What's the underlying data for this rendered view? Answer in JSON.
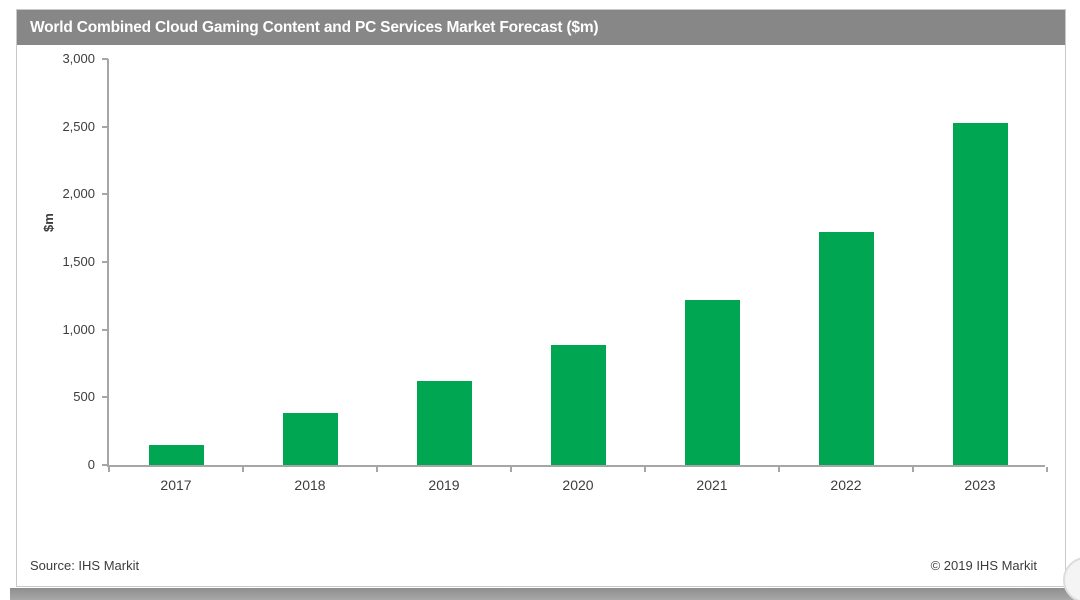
{
  "header": {
    "title": "World Combined Cloud Gaming Content and PC Services Market Forecast ($m)"
  },
  "footer": {
    "source": "Source: IHS Markit",
    "copyright": "© 2019 IHS Markit"
  },
  "chart_data": {
    "type": "bar",
    "title": "World Combined Cloud Gaming Content and PC Services Market Forecast ($m)",
    "categories": [
      "2017",
      "2018",
      "2019",
      "2020",
      "2021",
      "2022",
      "2023"
    ],
    "values": [
      145,
      387,
      620,
      890,
      1220,
      1720,
      2530
    ],
    "xlabel": "",
    "ylabel": "$m",
    "ylim": [
      0,
      3000
    ],
    "yticks": [
      0,
      500,
      1000,
      1500,
      2000,
      2500,
      3000
    ],
    "ytick_labels": [
      "0",
      "500",
      "1,000",
      "1,500",
      "2,000",
      "2,500",
      "3,000"
    ],
    "bar_color": "#00A651",
    "grid": false,
    "legend": "none"
  },
  "colors": {
    "title_bar_bg": "#878787",
    "title_text": "#ffffff",
    "bar": "#00A651",
    "axis": "#a6a6a6",
    "text": "#3d3d3d",
    "panel_border": "#c9c9c9"
  }
}
